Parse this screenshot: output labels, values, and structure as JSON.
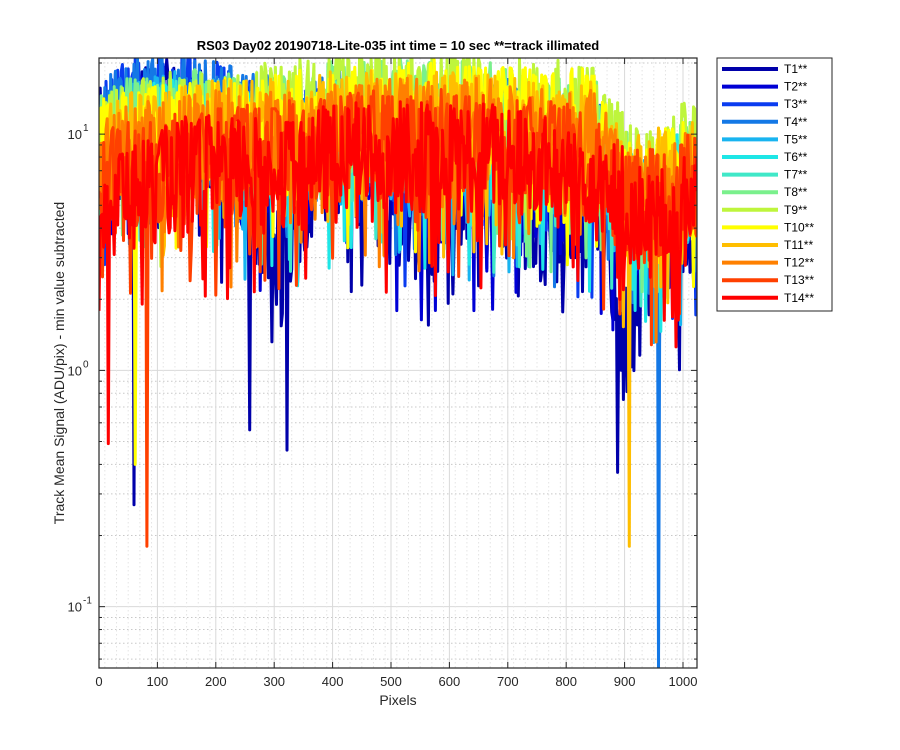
{
  "chart_data": {
    "type": "line",
    "title": "RS03 Day02 20190718-Lite-035 int time = 10 sec    **=track illimated",
    "xlabel": "Pixels",
    "ylabel": "Track Mean Signal (ADU/pix) - min value subtracted",
    "xlim": [
      0,
      1024
    ],
    "ylim": [
      0.055,
      21
    ],
    "yscale": "log",
    "grid": "on (major and minor)",
    "legend_position": "outside right, top",
    "x_ticks": [
      0,
      100,
      200,
      300,
      400,
      500,
      600,
      700,
      800,
      900,
      1000
    ],
    "x_tick_labels": [
      "0",
      "100",
      "200",
      "300",
      "400",
      "500",
      "600",
      "700",
      "800",
      "900",
      "1000"
    ],
    "y_ticks": [
      0.1,
      1,
      10
    ],
    "y_tick_labels": [
      "10",
      "10",
      "10"
    ],
    "y_tick_exponents": [
      "-1",
      "0",
      "1"
    ],
    "x": [
      0,
      50,
      100,
      150,
      200,
      250,
      300,
      350,
      400,
      450,
      500,
      550,
      600,
      650,
      700,
      750,
      800,
      850,
      900,
      950,
      1000,
      1024
    ],
    "series": [
      {
        "name": "T1**",
        "color": "#0000aa",
        "values": [
          9,
          11,
          12,
          12,
          10,
          6,
          3,
          5,
          8,
          7,
          5,
          4,
          5,
          6,
          5,
          4,
          4,
          5,
          2,
          3,
          4,
          4
        ],
        "dips": [
          [
            60,
            0.27
          ],
          [
            258,
            0.56
          ],
          [
            322,
            0.46
          ],
          [
            888,
            0.37
          ]
        ]
      },
      {
        "name": "T2**",
        "color": "#0000d5",
        "values": [
          9,
          10,
          11,
          11,
          10,
          8,
          7,
          7,
          8,
          8,
          7,
          6,
          6,
          7,
          7,
          6,
          6,
          7,
          4,
          4,
          5,
          5
        ],
        "dips": []
      },
      {
        "name": "T3**",
        "color": "#0a3cf0",
        "values": [
          10,
          12,
          13,
          13,
          12,
          10,
          9,
          9,
          10,
          10,
          9,
          8,
          8,
          9,
          9,
          8,
          8,
          8,
          5,
          5,
          6,
          6
        ],
        "dips": []
      },
      {
        "name": "T4**",
        "color": "#1478e6",
        "values": [
          10,
          12,
          13,
          13,
          12,
          11,
          10,
          10,
          11,
          11,
          10,
          9,
          9,
          10,
          10,
          9,
          9,
          9,
          5,
          4,
          6,
          6
        ],
        "dips": [
          [
            958,
            0.055
          ]
        ]
      },
      {
        "name": "T5**",
        "color": "#18b4f0",
        "values": [
          8,
          10,
          11,
          11,
          10,
          9,
          9,
          9,
          10,
          10,
          9,
          9,
          9,
          9,
          9,
          8,
          8,
          8,
          5,
          5,
          6,
          6
        ],
        "dips": []
      },
      {
        "name": "T6**",
        "color": "#1ee6e6",
        "values": [
          8,
          9,
          10,
          10,
          9,
          9,
          9,
          9,
          10,
          10,
          9,
          9,
          9,
          9,
          9,
          8,
          8,
          8,
          5,
          5,
          6,
          6
        ],
        "dips": []
      },
      {
        "name": "T7**",
        "color": "#40e8c8",
        "values": [
          8,
          9,
          10,
          10,
          10,
          9,
          9,
          10,
          10,
          11,
          10,
          10,
          10,
          10,
          10,
          9,
          9,
          9,
          5,
          5,
          6,
          6
        ],
        "dips": []
      },
      {
        "name": "T8**",
        "color": "#7af08c",
        "values": [
          9,
          10,
          10,
          11,
          11,
          10,
          11,
          11,
          12,
          12,
          12,
          12,
          12,
          12,
          11,
          10,
          10,
          10,
          6,
          5,
          7,
          7
        ],
        "dips": []
      },
      {
        "name": "T9**",
        "color": "#bef53c",
        "values": [
          9,
          10,
          11,
          11,
          11,
          11,
          12,
          12,
          13,
          14,
          14,
          14,
          14,
          14,
          13,
          12,
          12,
          12,
          7,
          6,
          8,
          8
        ],
        "dips": []
      },
      {
        "name": "T10**",
        "color": "#ffff00",
        "values": [
          8,
          9,
          10,
          10,
          10,
          10,
          11,
          11,
          12,
          12,
          12,
          12,
          12,
          12,
          12,
          11,
          11,
          11,
          6,
          6,
          7,
          7
        ],
        "dips": [
          [
            62,
            0.4
          ]
        ]
      },
      {
        "name": "T11**",
        "color": "#ffbe00",
        "values": [
          8,
          9,
          9,
          10,
          10,
          10,
          10,
          10,
          11,
          11,
          11,
          11,
          11,
          11,
          11,
          10,
          10,
          10,
          6,
          6,
          7,
          7
        ],
        "dips": [
          [
            908,
            0.18
          ]
        ]
      },
      {
        "name": "T12**",
        "color": "#ff8000",
        "values": [
          7,
          8,
          8,
          9,
          9,
          9,
          9,
          9,
          10,
          10,
          10,
          10,
          10,
          10,
          10,
          9,
          9,
          9,
          5,
          5,
          6,
          6
        ],
        "dips": []
      },
      {
        "name": "T13**",
        "color": "#ff4000",
        "values": [
          6,
          7,
          7,
          8,
          8,
          8,
          8,
          8,
          9,
          9,
          9,
          9,
          9,
          9,
          9,
          8,
          8,
          8,
          5,
          5,
          6,
          6
        ],
        "dips": [
          [
            82,
            0.18
          ]
        ]
      },
      {
        "name": "T14**",
        "color": "#ff0000",
        "values": [
          5,
          6,
          6,
          7,
          7,
          7,
          7,
          7,
          8,
          8,
          8,
          8,
          8,
          8,
          8,
          7,
          7,
          7,
          5,
          4,
          5,
          5
        ],
        "dips": [
          [
            16,
            0.49
          ]
        ]
      }
    ]
  }
}
